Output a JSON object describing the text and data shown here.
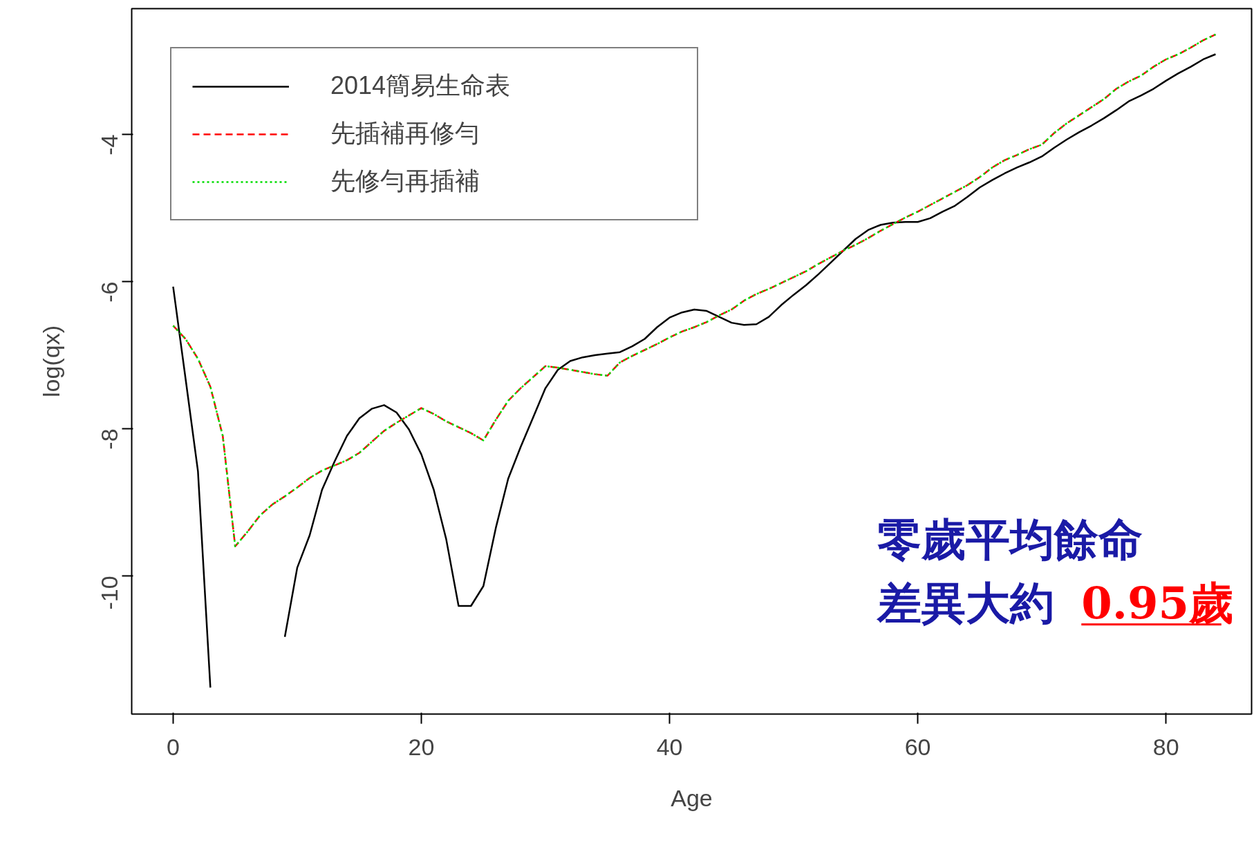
{
  "chart_data": {
    "type": "line",
    "xlabel": "Age",
    "ylabel": "log(qx)",
    "x": [
      0,
      1,
      2,
      3,
      4,
      5,
      6,
      7,
      8,
      9,
      10,
      11,
      12,
      13,
      14,
      15,
      16,
      17,
      18,
      19,
      20,
      21,
      22,
      23,
      24,
      25,
      26,
      27,
      28,
      29,
      30,
      31,
      32,
      33,
      34,
      35,
      36,
      37,
      38,
      39,
      40,
      41,
      42,
      43,
      44,
      45,
      46,
      47,
      48,
      49,
      50,
      51,
      52,
      53,
      54,
      55,
      56,
      57,
      58,
      59,
      60,
      61,
      62,
      63,
      64,
      65,
      66,
      67,
      68,
      69,
      70,
      71,
      72,
      73,
      74,
      75,
      76,
      77,
      78,
      79,
      80,
      81,
      82,
      83,
      84
    ],
    "series": [
      {
        "name": "2014簡易生命表",
        "color": "#000000",
        "line_style": "solid",
        "values": [
          -6.07,
          -7.32,
          -8.58,
          -11.52,
          null,
          null,
          null,
          null,
          null,
          -10.83,
          -9.89,
          -9.45,
          -8.83,
          -8.45,
          -8.1,
          -7.86,
          -7.73,
          -7.68,
          -7.78,
          -8.01,
          -8.35,
          -8.83,
          -9.5,
          -10.41,
          -10.41,
          -10.14,
          -9.35,
          -8.68,
          -8.25,
          -7.85,
          -7.45,
          -7.2,
          -7.08,
          -7.03,
          -7.0,
          -6.98,
          -6.96,
          -6.88,
          -6.78,
          -6.62,
          -6.49,
          -6.42,
          -6.38,
          -6.4,
          -6.48,
          -6.56,
          -6.59,
          -6.58,
          -6.48,
          -6.32,
          -6.18,
          -6.05,
          -5.9,
          -5.74,
          -5.58,
          -5.42,
          -5.3,
          -5.23,
          -5.2,
          -5.19,
          -5.19,
          -5.14,
          -5.05,
          -4.97,
          -4.85,
          -4.72,
          -4.62,
          -4.53,
          -4.45,
          -4.38,
          -4.3,
          -4.18,
          -4.07,
          -3.97,
          -3.88,
          -3.78,
          -3.67,
          -3.55,
          -3.47,
          -3.38,
          -3.27,
          -3.17,
          -3.08,
          -2.98,
          -2.91
        ]
      },
      {
        "name": "先插補再修勻",
        "color": "#ff0000",
        "line_style": "dashed",
        "values": [
          -6.6,
          -6.78,
          -7.05,
          -7.43,
          -8.1,
          -9.6,
          -9.4,
          -9.18,
          -9.03,
          -8.92,
          -8.8,
          -8.67,
          -8.57,
          -8.5,
          -8.43,
          -8.33,
          -8.18,
          -8.03,
          -7.92,
          -7.82,
          -7.72,
          -7.8,
          -7.9,
          -7.98,
          -8.06,
          -8.16,
          -7.88,
          -7.62,
          -7.45,
          -7.3,
          -7.15,
          -7.17,
          -7.2,
          -7.23,
          -7.26,
          -7.28,
          -7.1,
          -7.01,
          -6.93,
          -6.85,
          -6.76,
          -6.68,
          -6.62,
          -6.55,
          -6.46,
          -6.38,
          -6.26,
          -6.17,
          -6.1,
          -6.02,
          -5.94,
          -5.86,
          -5.76,
          -5.67,
          -5.58,
          -5.5,
          -5.41,
          -5.31,
          -5.22,
          -5.13,
          -5.05,
          -4.96,
          -4.87,
          -4.78,
          -4.69,
          -4.58,
          -4.45,
          -4.35,
          -4.28,
          -4.2,
          -4.14,
          -3.98,
          -3.85,
          -3.74,
          -3.63,
          -3.52,
          -3.38,
          -3.28,
          -3.2,
          -3.08,
          -2.98,
          -2.91,
          -2.82,
          -2.72,
          -2.64
        ]
      },
      {
        "name": "先修勻再插補",
        "color": "#00dd00",
        "line_style": "dotted",
        "values": [
          -6.6,
          -6.78,
          -7.05,
          -7.43,
          -8.1,
          -9.6,
          -9.4,
          -9.18,
          -9.03,
          -8.92,
          -8.8,
          -8.67,
          -8.57,
          -8.5,
          -8.43,
          -8.33,
          -8.18,
          -8.03,
          -7.92,
          -7.82,
          -7.72,
          -7.8,
          -7.9,
          -7.98,
          -8.06,
          -8.16,
          -7.88,
          -7.62,
          -7.45,
          -7.3,
          -7.15,
          -7.17,
          -7.2,
          -7.23,
          -7.26,
          -7.28,
          -7.1,
          -7.01,
          -6.93,
          -6.85,
          -6.76,
          -6.68,
          -6.62,
          -6.55,
          -6.46,
          -6.38,
          -6.26,
          -6.17,
          -6.1,
          -6.02,
          -5.94,
          -5.86,
          -5.76,
          -5.67,
          -5.58,
          -5.5,
          -5.41,
          -5.31,
          -5.22,
          -5.13,
          -5.05,
          -4.96,
          -4.87,
          -4.78,
          -4.69,
          -4.58,
          -4.45,
          -4.35,
          -4.28,
          -4.2,
          -4.14,
          -3.98,
          -3.85,
          -3.74,
          -3.63,
          -3.52,
          -3.38,
          -3.28,
          -3.2,
          -3.08,
          -2.98,
          -2.91,
          -2.82,
          -2.72,
          -2.64
        ]
      }
    ],
    "xlim": [
      -3.34,
      86.9
    ],
    "ylim": [
      -11.88,
      -2.29
    ],
    "xticks": [
      0,
      20,
      40,
      60,
      80
    ],
    "yticks": [
      -10,
      -8,
      -6,
      -4
    ],
    "grid": false,
    "legend": "top left",
    "marker": "none",
    "annotations": [
      "零歲平均餘命",
      "差異大約",
      "0.95歲"
    ]
  }
}
